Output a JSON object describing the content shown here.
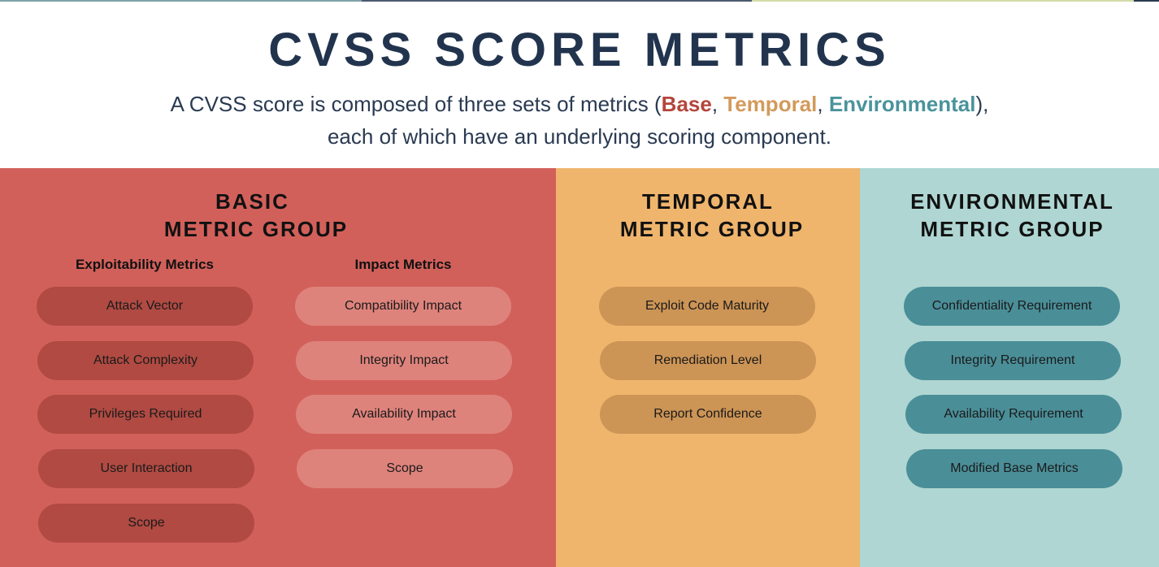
{
  "colors": {
    "base": "#b5453c",
    "temporal": "#d39a5b",
    "environmental": "#4a939c",
    "title": "#22344d",
    "base_panel": "#d2605a",
    "temporal_panel": "#efb56d",
    "environmental_panel": "#afd6d2"
  },
  "title": "CVSS SCORE METRICS",
  "subtitle": {
    "prefix": "A CVSS score is composed of three sets of metrics (",
    "base": "Base",
    "sep1": ", ",
    "temporal": "Temporal",
    "sep2": ", ",
    "environmental": "Environmental",
    "suffix": "),",
    "line2": "each of which have an underlying scoring component."
  },
  "basic": {
    "heading_line1": "BASIC",
    "heading_line2": "METRIC GROUP",
    "exploitability": {
      "heading": "Exploitability Metrics",
      "items": [
        "Attack Vector",
        "Attack Complexity",
        "Privileges Required",
        "User Interaction",
        "Scope"
      ]
    },
    "impact": {
      "heading": "Impact Metrics",
      "items": [
        "Compatibility Impact",
        "Integrity Impact",
        "Availability Impact",
        "Scope"
      ]
    }
  },
  "temporal": {
    "heading_line1": "TEMPORAL",
    "heading_line2": "METRIC GROUP",
    "items": [
      "Exploit Code Maturity",
      "Remediation Level",
      "Report Confidence"
    ]
  },
  "environmental": {
    "heading_line1": "ENVIRONMENTAL",
    "heading_line2": "METRIC GROUP",
    "items": [
      "Confidentiality Requirement",
      "Integrity Requirement",
      "Availability Requirement",
      "Modified Base Metrics"
    ]
  }
}
